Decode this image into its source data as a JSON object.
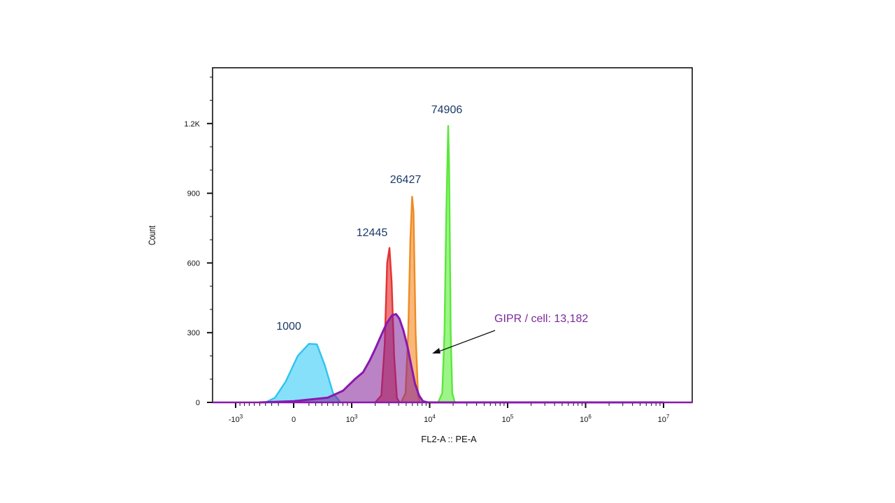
{
  "chart_data": {
    "type": "area",
    "xlabel": "FL2-A :: PE-A",
    "ylabel": "Count",
    "ylim": [
      0,
      1440
    ],
    "x_scale": "biexponential",
    "y_ticks": [
      {
        "value": 0,
        "label": "0"
      },
      {
        "value": 300,
        "label": "300"
      },
      {
        "value": 600,
        "label": "600"
      },
      {
        "value": 900,
        "label": "900"
      },
      {
        "value": 1200,
        "label": "1.2K"
      }
    ],
    "x_ticks": [
      {
        "value": -1000,
        "base": "-10",
        "exp": "3"
      },
      {
        "value": 0,
        "base": "0",
        "exp": ""
      },
      {
        "value": 1000,
        "base": "10",
        "exp": "3"
      },
      {
        "value": 10000,
        "base": "10",
        "exp": "4"
      },
      {
        "value": 100000,
        "base": "10",
        "exp": "5"
      },
      {
        "value": 1000000,
        "base": "10",
        "exp": "6"
      },
      {
        "value": 10000000,
        "base": "10",
        "exp": "7"
      }
    ],
    "series": [
      {
        "color": "#2ec4f0",
        "fill": "#5fd6f7",
        "points": [
          [
            -400,
            0
          ],
          [
            -250,
            20
          ],
          [
            -100,
            90
          ],
          [
            50,
            200
          ],
          [
            200,
            252
          ],
          [
            320,
            250
          ],
          [
            450,
            160
          ],
          [
            600,
            40
          ],
          [
            750,
            0
          ]
        ]
      },
      {
        "color": "#e83030",
        "fill": "#e65050",
        "points": [
          [
            2000,
            0
          ],
          [
            2400,
            30
          ],
          [
            2650,
            250
          ],
          [
            2850,
            600
          ],
          [
            3050,
            665
          ],
          [
            3250,
            520
          ],
          [
            3500,
            200
          ],
          [
            3800,
            20
          ],
          [
            4100,
            0
          ]
        ]
      },
      {
        "color": "#f08a20",
        "fill": "#f5a050",
        "points": [
          [
            4300,
            0
          ],
          [
            4900,
            40
          ],
          [
            5300,
            300
          ],
          [
            5650,
            700
          ],
          [
            5950,
            885
          ],
          [
            6200,
            820
          ],
          [
            6600,
            300
          ],
          [
            7100,
            30
          ],
          [
            7500,
            0
          ]
        ]
      },
      {
        "color": "#5ae83a",
        "fill": "#7cf060",
        "points": [
          [
            12800,
            0
          ],
          [
            14500,
            40
          ],
          [
            15500,
            300
          ],
          [
            16300,
            800
          ],
          [
            16800,
            1000
          ],
          [
            17300,
            1190
          ],
          [
            17800,
            1000
          ],
          [
            18600,
            300
          ],
          [
            19500,
            40
          ],
          [
            21000,
            0
          ]
        ]
      },
      {
        "color": "#8a18b0",
        "fill": "rgba(130,30,150,0.55)",
        "points": [
          [
            -500,
            0
          ],
          [
            0,
            5
          ],
          [
            500,
            20
          ],
          [
            800,
            50
          ],
          [
            1100,
            100
          ],
          [
            1400,
            130
          ],
          [
            1700,
            180
          ],
          [
            2000,
            230
          ],
          [
            2400,
            290
          ],
          [
            2800,
            340
          ],
          [
            3300,
            375
          ],
          [
            3700,
            380
          ],
          [
            4100,
            360
          ],
          [
            4600,
            310
          ],
          [
            5200,
            240
          ],
          [
            5800,
            160
          ],
          [
            6500,
            80
          ],
          [
            7300,
            30
          ],
          [
            8200,
            5
          ],
          [
            9500,
            0
          ],
          [
            100000,
            0
          ],
          [
            10000000,
            0
          ]
        ]
      }
    ],
    "peak_labels": [
      "1000",
      "12445",
      "26427",
      "74906"
    ],
    "annotation": "GIPR / cell: 13,182"
  }
}
